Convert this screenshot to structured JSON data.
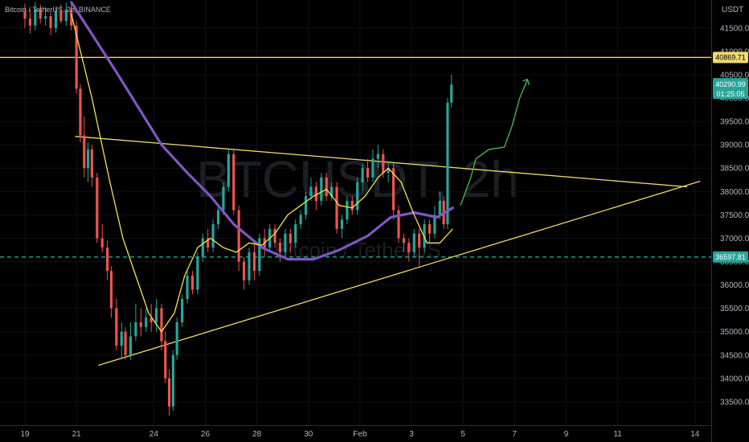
{
  "header": {
    "symbol_title": "Bitcoin / TetherUS, 2h, BINANCE",
    "currency": "USDT"
  },
  "watermark": {
    "big": "BTCUSDT, 2h",
    "small": "Bitcoin / TetherUS"
  },
  "price_tags": {
    "resistance": "40869.71",
    "last_price": "40290.99",
    "countdown": "01:25:05",
    "support": "36597.81"
  },
  "chart_data": {
    "type": "candlestick",
    "y_axis": {
      "range": [
        33000,
        42100
      ],
      "ticks": [
        "33500.00",
        "34000.00",
        "34500.00",
        "35000.00",
        "35500.00",
        "36000.00",
        "36500.00",
        "37000.00",
        "37500.00",
        "38000.00",
        "38500.00",
        "39000.00",
        "39500.00",
        "40000.00",
        "40500.00",
        "41000.00",
        "41500.00"
      ]
    },
    "x_axis": {
      "range_days": [
        19,
        46
      ],
      "ticks": [
        {
          "label": "19",
          "day": 19
        },
        {
          "label": "21",
          "day": 21
        },
        {
          "label": "24",
          "day": 24
        },
        {
          "label": "26",
          "day": 26
        },
        {
          "label": "28",
          "day": 28
        },
        {
          "label": "30",
          "day": 30
        },
        {
          "label": "Feb",
          "day": 32
        },
        {
          "label": "3",
          "day": 34
        },
        {
          "label": "5",
          "day": 36
        },
        {
          "label": "7",
          "day": 38
        },
        {
          "label": "9",
          "day": 40
        },
        {
          "label": "11",
          "day": 42
        },
        {
          "label": "14",
          "day": 45
        }
      ]
    },
    "horizontal_lines": [
      {
        "price": 40869.71,
        "color": "#f0d96e",
        "style": "solid"
      },
      {
        "price": 36597.81,
        "color": "#26a69a",
        "style": "dashed"
      }
    ],
    "trendlines": [
      {
        "name": "upper",
        "from": [
          20.95,
          39180
        ],
        "to": [
          44.7,
          38100
        ],
        "color": "#f0d96e"
      },
      {
        "name": "lower",
        "from": [
          21.85,
          34280
        ],
        "to": [
          45.2,
          38220
        ],
        "color": "#f0d96e"
      }
    ],
    "ma_slow": {
      "color": "#7e57c2",
      "points": [
        [
          20.8,
          42050
        ],
        [
          22.5,
          40600
        ],
        [
          24.3,
          39000
        ],
        [
          25.3,
          38400
        ],
        [
          26.2,
          37900
        ],
        [
          27.1,
          37300
        ],
        [
          28.2,
          36800
        ],
        [
          29.2,
          36550
        ],
        [
          30.2,
          36550
        ],
        [
          31.2,
          36750
        ],
        [
          32.3,
          37050
        ],
        [
          33.2,
          37450
        ],
        [
          34.1,
          37550
        ],
        [
          35.0,
          37450
        ],
        [
          35.6,
          37650
        ]
      ]
    },
    "ma_fast": {
      "color": "#f4e34f",
      "points": [
        [
          20.8,
          41800
        ],
        [
          21.6,
          40000
        ],
        [
          22.3,
          38200
        ],
        [
          22.8,
          37000
        ],
        [
          23.3,
          36200
        ],
        [
          23.8,
          35400
        ],
        [
          24.3,
          35000
        ],
        [
          24.8,
          35400
        ],
        [
          25.2,
          36200
        ],
        [
          25.7,
          36800
        ],
        [
          26.2,
          37000
        ],
        [
          26.7,
          36800
        ],
        [
          27.2,
          36700
        ],
        [
          27.7,
          36900
        ],
        [
          28.2,
          36850
        ],
        [
          28.7,
          37100
        ],
        [
          29.2,
          37500
        ],
        [
          29.7,
          37700
        ],
        [
          30.2,
          37900
        ],
        [
          30.7,
          38050
        ],
        [
          31.2,
          37700
        ],
        [
          31.7,
          37650
        ],
        [
          32.2,
          37900
        ],
        [
          32.7,
          38300
        ],
        [
          33.1,
          38500
        ],
        [
          33.6,
          38200
        ],
        [
          34.1,
          37500
        ],
        [
          34.6,
          36900
        ],
        [
          35.1,
          36900
        ],
        [
          35.6,
          37200
        ]
      ]
    },
    "projection": {
      "color": "#4caf50",
      "points": [
        [
          35.9,
          37700
        ],
        [
          36.3,
          38300
        ],
        [
          36.5,
          38700
        ],
        [
          37.0,
          38900
        ],
        [
          37.6,
          38950
        ],
        [
          37.9,
          39400
        ],
        [
          38.2,
          40000
        ],
        [
          38.5,
          40400
        ]
      ]
    },
    "candles": [
      [
        19.0,
        41850,
        41700,
        42020,
        41500
      ],
      [
        19.2,
        41700,
        41550,
        41900,
        41380
      ],
      [
        19.4,
        41550,
        41900,
        42050,
        41450
      ],
      [
        19.6,
        41900,
        41700,
        42000,
        41600
      ],
      [
        19.8,
        41700,
        41750,
        41950,
        41550
      ],
      [
        20.0,
        41750,
        41500,
        41850,
        41350
      ],
      [
        20.2,
        41500,
        41850,
        41950,
        41400
      ],
      [
        20.4,
        41850,
        41650,
        42000,
        41600
      ],
      [
        20.6,
        41650,
        41900,
        42050,
        41550
      ],
      [
        20.8,
        41900,
        41550,
        42030,
        41450
      ],
      [
        21.0,
        41550,
        40200,
        41650,
        40100
      ],
      [
        21.15,
        40200,
        39200,
        40300,
        39050
      ],
      [
        21.3,
        39200,
        38500,
        39600,
        38300
      ],
      [
        21.45,
        38500,
        38900,
        39050,
        38200
      ],
      [
        21.6,
        38900,
        38300,
        39000,
        38100
      ],
      [
        21.8,
        38300,
        37000,
        38400,
        36900
      ],
      [
        22.0,
        37000,
        36800,
        37300,
        36700
      ],
      [
        22.2,
        36800,
        36300,
        36950,
        36100
      ],
      [
        22.35,
        36300,
        35500,
        36400,
        35300
      ],
      [
        22.55,
        35500,
        34700,
        35700,
        34600
      ],
      [
        22.75,
        34700,
        35000,
        35200,
        34400
      ],
      [
        22.9,
        35000,
        34500,
        35100,
        34400
      ],
      [
        23.1,
        34500,
        34900,
        35200,
        34400
      ],
      [
        23.3,
        34900,
        35200,
        35600,
        34800
      ],
      [
        23.5,
        35200,
        35100,
        35500,
        34900
      ],
      [
        23.7,
        35100,
        35300,
        35500,
        35000
      ],
      [
        23.9,
        35300,
        35200,
        35600,
        35000
      ],
      [
        24.1,
        35200,
        35500,
        35700,
        35000
      ],
      [
        24.3,
        35500,
        34800,
        35600,
        34600
      ],
      [
        24.45,
        34800,
        34000,
        35000,
        33900
      ],
      [
        24.6,
        34000,
        33400,
        34200,
        33200
      ],
      [
        24.75,
        33400,
        34500,
        34600,
        33300
      ],
      [
        24.9,
        34500,
        35200,
        35300,
        34400
      ],
      [
        25.1,
        35200,
        35700,
        35800,
        35100
      ],
      [
        25.3,
        35700,
        36200,
        36300,
        35600
      ],
      [
        25.5,
        36200,
        35900,
        36300,
        35800
      ],
      [
        25.7,
        35900,
        36600,
        36700,
        35800
      ],
      [
        25.9,
        36600,
        37000,
        37100,
        36500
      ],
      [
        26.1,
        37000,
        36800,
        37200,
        36700
      ],
      [
        26.3,
        36800,
        37300,
        37400,
        36700
      ],
      [
        26.5,
        37300,
        37600,
        37700,
        37200
      ],
      [
        26.7,
        37600,
        38100,
        38200,
        37500
      ],
      [
        26.9,
        38100,
        38800,
        38900,
        38000
      ],
      [
        27.1,
        38800,
        37600,
        38900,
        37500
      ],
      [
        27.3,
        37600,
        36500,
        37700,
        36300
      ],
      [
        27.5,
        36500,
        36100,
        36600,
        35900
      ],
      [
        27.7,
        36100,
        36700,
        36800,
        36000
      ],
      [
        27.9,
        36700,
        36300,
        36900,
        36100
      ],
      [
        28.1,
        36300,
        37000,
        37100,
        36200
      ],
      [
        28.3,
        37000,
        36800,
        37200,
        36600
      ],
      [
        28.5,
        36800,
        37200,
        37300,
        36700
      ],
      [
        28.7,
        37200,
        36900,
        37300,
        36800
      ],
      [
        28.9,
        36900,
        36700,
        37000,
        36500
      ],
      [
        29.1,
        36700,
        37100,
        37200,
        36600
      ],
      [
        29.3,
        37100,
        36900,
        37200,
        36700
      ],
      [
        29.5,
        36900,
        37300,
        37400,
        36800
      ],
      [
        29.7,
        37300,
        37500,
        37600,
        37200
      ],
      [
        29.9,
        37500,
        37900,
        38000,
        37400
      ],
      [
        30.1,
        37900,
        38100,
        38300,
        37800
      ],
      [
        30.3,
        38100,
        37800,
        38200,
        37600
      ],
      [
        30.5,
        37800,
        38300,
        38400,
        37700
      ],
      [
        30.7,
        38300,
        37900,
        38400,
        37800
      ],
      [
        30.9,
        37900,
        38100,
        38200,
        37800
      ],
      [
        31.1,
        38100,
        37200,
        38200,
        37100
      ],
      [
        31.3,
        37200,
        37400,
        37500,
        37000
      ],
      [
        31.5,
        37400,
        37800,
        37900,
        37300
      ],
      [
        31.7,
        37800,
        37600,
        37900,
        37500
      ],
      [
        31.9,
        37600,
        38200,
        38300,
        37500
      ],
      [
        32.1,
        38200,
        38500,
        38600,
        38000
      ],
      [
        32.3,
        38500,
        38300,
        38700,
        38200
      ],
      [
        32.5,
        38300,
        38700,
        38900,
        38200
      ],
      [
        32.7,
        38700,
        38800,
        39000,
        38500
      ],
      [
        32.9,
        38800,
        38400,
        38900,
        38300
      ],
      [
        33.1,
        38400,
        38500,
        38600,
        38200
      ],
      [
        33.3,
        38500,
        37600,
        38600,
        37400
      ],
      [
        33.5,
        37600,
        37000,
        37700,
        36900
      ],
      [
        33.7,
        37000,
        36900,
        37100,
        36700
      ],
      [
        33.9,
        36900,
        36700,
        37000,
        36500
      ],
      [
        34.1,
        36700,
        37100,
        37200,
        36600
      ],
      [
        34.3,
        37100,
        36800,
        37200,
        36400
      ],
      [
        34.5,
        36800,
        37300,
        37400,
        36700
      ],
      [
        34.7,
        37300,
        37100,
        37400,
        36900
      ],
      [
        34.9,
        37100,
        37500,
        37700,
        37000
      ],
      [
        35.1,
        37500,
        37800,
        38000,
        37400
      ],
      [
        35.25,
        37800,
        37300,
        37900,
        37200
      ],
      [
        35.4,
        37300,
        39900,
        40000,
        37200
      ],
      [
        35.55,
        39900,
        40290.99,
        40500,
        39800
      ]
    ]
  }
}
